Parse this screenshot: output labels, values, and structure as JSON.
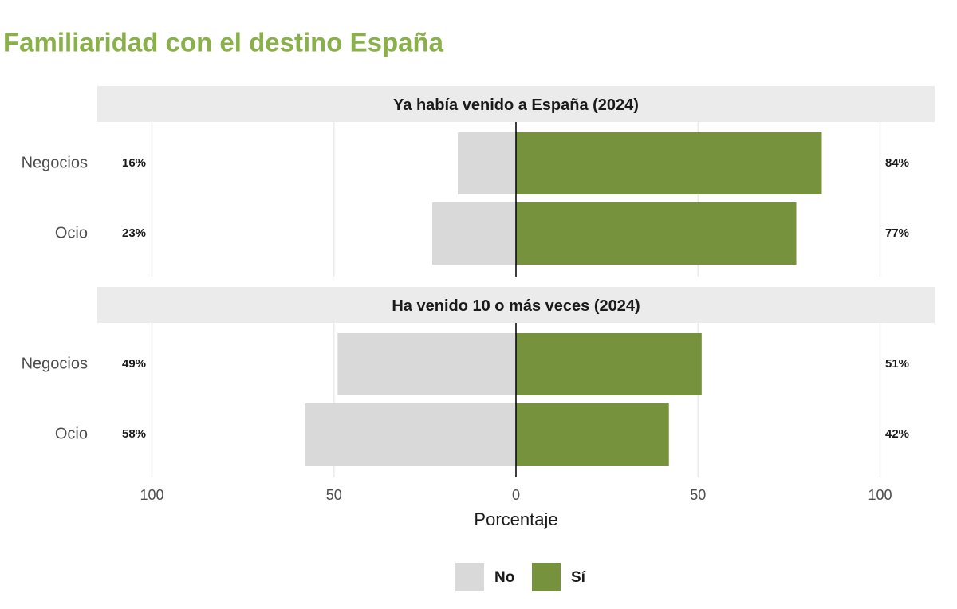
{
  "title": "Familiaridad con el destino España",
  "chart_data": {
    "type": "diverging_bar",
    "xlabel": "Porcentaje",
    "xlim": [
      -115,
      115
    ],
    "xticks": [
      {
        "value": -100,
        "label": "100"
      },
      {
        "value": -50,
        "label": "50"
      },
      0,
      50,
      100
    ],
    "facets": [
      {
        "title": "Ya había venido a España (2024)",
        "categories": [
          "Negocios",
          "Ocio"
        ],
        "series": [
          {
            "name": "No",
            "color": "#d9d9d9",
            "values": [
              16,
              23
            ],
            "value_labels": [
              "16%",
              "23%"
            ]
          },
          {
            "name": "Sí",
            "color": "#76923c",
            "values": [
              84,
              77
            ],
            "value_labels": [
              "84%",
              "77%"
            ]
          }
        ]
      },
      {
        "title": "Ha venido 10 o más veces (2024)",
        "categories": [
          "Negocios",
          "Ocio"
        ],
        "series": [
          {
            "name": "No",
            "color": "#d9d9d9",
            "values": [
              49,
              58
            ],
            "value_labels": [
              "49%",
              "58%"
            ]
          },
          {
            "name": "Sí",
            "color": "#76923c",
            "values": [
              51,
              42
            ],
            "value_labels": [
              "51%",
              "42%"
            ]
          }
        ]
      }
    ]
  }
}
